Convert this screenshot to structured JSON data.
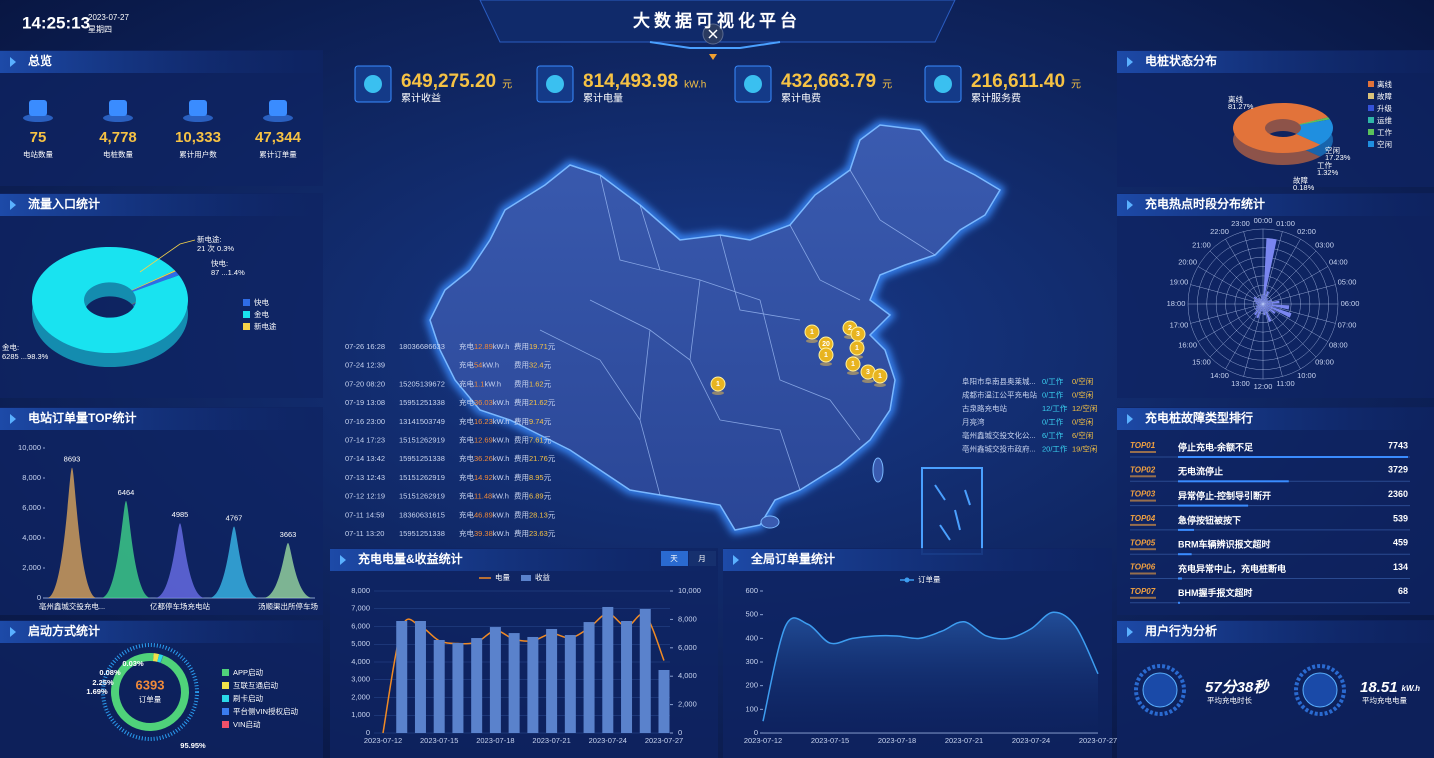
{
  "header": {
    "time": "14:25:13",
    "date": "2023-07-27",
    "weekday": "星期四",
    "title": "大数据可视化平台"
  },
  "kpis": [
    {
      "value": "649,275.20",
      "unit": "元",
      "label": "累计收益"
    },
    {
      "value": "814,493.98",
      "unit": "kW.h",
      "label": "累计电量"
    },
    {
      "value": "432,663.79",
      "unit": "元",
      "label": "累计电费"
    },
    {
      "value": "216,611.40",
      "unit": "元",
      "label": "累计服务费"
    }
  ],
  "overview": {
    "title": "总览",
    "items": [
      {
        "value": "75",
        "label": "电站数量"
      },
      {
        "value": "4,778",
        "label": "电桩数量"
      },
      {
        "value": "10,333",
        "label": "累计用户数"
      },
      {
        "value": "47,344",
        "label": "累计订单量"
      }
    ]
  },
  "traffic": {
    "title": "流量入口统计",
    "chart": {
      "type": "pie",
      "categories": [
        "快电",
        "金电",
        "新电途"
      ],
      "callout_names": [
        "快电:",
        "金电:",
        "新电途:"
      ],
      "values": [
        87,
        6285,
        21
      ],
      "value_labels": [
        "87 ...1.4%",
        "6285 ...98.3%",
        "21 次 0.3%"
      ],
      "colors": [
        "#2f6ce6",
        "#19e3f0",
        "#f5d34a"
      ]
    }
  },
  "station_top": {
    "title": "电站订单量TOP统计",
    "chart": {
      "type": "peak",
      "categories": [
        "亳州鑫城交投充电...",
        null,
        "亿都停车场充电站",
        null,
        "汤顺渠出所停车场"
      ],
      "values": [
        8693,
        6464,
        4985,
        4767,
        3663
      ],
      "colors": [
        "#d9a45a",
        "#3fd28a",
        "#6a6ee8",
        "#3ab8e8",
        "#9ad8a0"
      ],
      "ylim": [
        0,
        10000
      ],
      "yticks": [
        0,
        {
          "value": 2000,
          "label": "2,000"
        },
        {
          "value": 4000,
          "label": "4,000"
        },
        {
          "value": 6000,
          "label": "6,000"
        },
        {
          "value": 8000,
          "label": "8,000"
        },
        {
          "value": 10000,
          "label": "10,000"
        }
      ]
    }
  },
  "startup": {
    "title": "启动方式统计",
    "total": "6393",
    "total_label": "订单量",
    "chart": {
      "type": "donut",
      "categories": [
        "APP启动",
        "互联互通启动",
        "刷卡启动",
        "平台侧VIN授权启动",
        "VIN启动"
      ],
      "values": [
        95.95,
        2.25,
        1.69,
        0.08,
        0.03
      ],
      "value_labels": [
        "95.95%",
        "2.25%",
        "1.69%",
        "0.08%",
        "0.03%"
      ],
      "colors": [
        "#4fd27a",
        "#f0e04a",
        "#2ad8e8",
        "#3a7cf0",
        "#f0506a"
      ]
    }
  },
  "status": {
    "title": "电桩状态分布",
    "chart": {
      "type": "pie3d",
      "categories": [
        "离线",
        "故障",
        "升级",
        "运维",
        "工作",
        "空闲"
      ],
      "values": [
        81.27,
        0.18,
        0,
        0,
        1.32,
        17.23
      ],
      "value_labels": [
        "81.27%",
        "0.18%",
        null,
        null,
        "1.32%",
        "17.23%"
      ],
      "colors": [
        "#e2733a",
        "#d9c27a",
        "#3552d8",
        "#2fb6a8",
        "#5bc25b",
        "#1f8fe0"
      ]
    }
  },
  "hotspot": {
    "title": "充电热点时段分布统计",
    "chart": {
      "type": "polar",
      "categories": [
        "00:00",
        "01:00",
        "02:00",
        "03:00",
        "04:00",
        "05:00",
        "06:00",
        "07:00",
        "08:00",
        "09:00",
        "10:00",
        "11:00",
        "12:00",
        "13:00",
        "14:00",
        "15:00",
        "16:00",
        "17:00",
        "18:00",
        "19:00",
        "20:00",
        "21:00",
        "22:00",
        "23:00"
      ],
      "values": [
        88,
        18,
        10,
        8,
        12,
        22,
        35,
        40,
        20,
        12,
        25,
        15,
        10,
        20,
        18,
        12,
        10,
        8,
        10,
        12,
        15,
        10,
        8,
        12
      ],
      "rlim": [
        0,
        100
      ],
      "color": "#7a86f0"
    }
  },
  "faults": {
    "title": "充电桩故障类型排行",
    "items": [
      {
        "rank": "TOP01",
        "name": "停止充电-余额不足",
        "count": 7743
      },
      {
        "rank": "TOP02",
        "name": "无电流停止",
        "count": 3729
      },
      {
        "rank": "TOP03",
        "name": "异常停止-控制导引断开",
        "count": 2360
      },
      {
        "rank": "TOP04",
        "name": "急停按钮被按下",
        "count": 539
      },
      {
        "rank": "TOP05",
        "name": "BRM车辆辨识报文超时",
        "count": 459
      },
      {
        "rank": "TOP06",
        "name": "充电异常中止，充电桩断电",
        "count": 134
      },
      {
        "rank": "TOP07",
        "name": "BHM握手报文超时",
        "count": 68
      }
    ]
  },
  "behavior": {
    "title": "用户行为分析",
    "items": [
      {
        "value": "57分38秒",
        "label": "平均充电时长"
      },
      {
        "value": "18.51",
        "unit": "kW.h",
        "label": "平均充电电量"
      }
    ]
  },
  "map": {
    "markers": [
      "1",
      "2",
      "3",
      "20",
      "1",
      "1",
      "1",
      "3",
      "1",
      "1"
    ],
    "labels": {
      "energy": "充电",
      "energy_unit": "kW.h",
      "fee": "费用",
      "fee_unit": "元"
    },
    "orders": [
      {
        "time": "07-26 16:28",
        "phone": "18036686633",
        "energy": "12.89",
        "fee": "19.71"
      },
      {
        "time": "07-24 12:39",
        "energy": "54",
        "fee": "32.4"
      },
      {
        "time": "07-20 08:20",
        "phone": "15205139672",
        "energy": "1.1",
        "fee": "1.62"
      },
      {
        "time": "07-19 13:08",
        "phone": "15951251338",
        "energy": "36.03",
        "fee": "21.62"
      },
      {
        "time": "07-16 23:00",
        "phone": "13141503749",
        "energy": "16.23",
        "fee": "9.74"
      },
      {
        "time": "07-14 17:23",
        "phone": "15151262919",
        "energy": "12.69",
        "fee": "7.61"
      },
      {
        "time": "07-14 13:42",
        "phone": "15951251338",
        "energy": "36.26",
        "fee": "21.76"
      },
      {
        "time": "07-13 12:43",
        "phone": "15151262919",
        "energy": "14.92",
        "fee": "8.95"
      },
      {
        "time": "07-12 12:19",
        "phone": "15151262919",
        "energy": "11.48",
        "fee": "6.89"
      },
      {
        "time": "07-11 14:59",
        "phone": "18360631615",
        "energy": "46.89",
        "fee": "28.13"
      },
      {
        "time": "07-11 13:20",
        "phone": "15951251338",
        "energy": "39.38",
        "fee": "23.63"
      }
    ],
    "stations": [
      {
        "name": "阜阳市阜南县奥莱城...",
        "working": "0/工作",
        "idle": "0/空闲"
      },
      {
        "name": "成都市温江公平充电站",
        "working": "0/工作",
        "idle": "0/空闲"
      },
      {
        "name": "古泉路充电站",
        "working": "12/工作",
        "idle": "12/空闲"
      },
      {
        "name": "月亮湾",
        "working": "0/工作",
        "idle": "0/空闲"
      },
      {
        "name": "亳州鑫城交投文化公...",
        "working": "6/工作",
        "idle": "6/空闲"
      },
      {
        "name": "亳州鑫城交投市政府...",
        "working": "20/工作",
        "idle": "19/空闲"
      }
    ]
  },
  "energy_chart": {
    "title": "充电电量&收益统计",
    "tabs": [
      "天",
      "月"
    ],
    "chart": {
      "type": "bar_line",
      "categories": [
        "2023-07-12",
        null,
        null,
        "2023-07-15",
        null,
        null,
        "2023-07-18",
        null,
        null,
        "2023-07-21",
        null,
        null,
        "2023-07-24",
        null,
        null,
        "2023-07-27"
      ],
      "series": [
        {
          "name": "电量",
          "type": "line",
          "axis": "y2",
          "color": "#f08a24",
          "values": [
            0,
            7400,
            7500,
            6500,
            6300,
            6400,
            7200,
            6600,
            6500,
            7000,
            6700,
            7400,
            8400,
            7500,
            8300,
            5100
          ]
        },
        {
          "name": "收益",
          "type": "bar",
          "color": "#5a82cc",
          "values": [
            0,
            6310,
            6310,
            5240,
            5070,
            5350,
            5970,
            5630,
            5410,
            5860,
            5520,
            6250,
            7100,
            6310,
            6990,
            3550
          ]
        }
      ],
      "ylim": [
        0,
        8000
      ],
      "yticks": [
        0,
        {
          "value": 1000,
          "label": "1,000"
        },
        {
          "value": 2000,
          "label": "2,000"
        },
        {
          "value": 3000,
          "label": "3,000"
        },
        {
          "value": 4000,
          "label": "4,000"
        },
        {
          "value": 5000,
          "label": "5,000"
        },
        {
          "value": 6000,
          "label": "6,000"
        },
        {
          "value": 7000,
          "label": "7,000"
        },
        {
          "value": 8000,
          "label": "8,000"
        }
      ],
      "y2lim": [
        0,
        10000
      ],
      "y2ticks": [
        0,
        {
          "value": 2000,
          "label": "2,000"
        },
        {
          "value": 4000,
          "label": "4,000"
        },
        {
          "value": 6000,
          "label": "6,000"
        },
        {
          "value": 8000,
          "label": "8,000"
        },
        {
          "value": 10000,
          "label": "10,000"
        }
      ]
    }
  },
  "orders_chart": {
    "title": "全局订单量统计",
    "chart": {
      "type": "area",
      "categories": [
        "2023-07-12",
        null,
        null,
        "2023-07-15",
        null,
        null,
        "2023-07-18",
        null,
        null,
        "2023-07-21",
        null,
        null,
        "2023-07-24",
        null,
        null,
        "2023-07-27"
      ],
      "series": [
        {
          "name": "订单量",
          "color": "#3d9df0",
          "values": [
            50,
            450,
            460,
            380,
            400,
            410,
            410,
            400,
            430,
            470,
            410,
            400,
            440,
            510,
            450,
            250
          ]
        }
      ],
      "ylim": [
        0,
        600
      ],
      "yticks": [
        0,
        100,
        200,
        300,
        400,
        500,
        600
      ]
    }
  }
}
